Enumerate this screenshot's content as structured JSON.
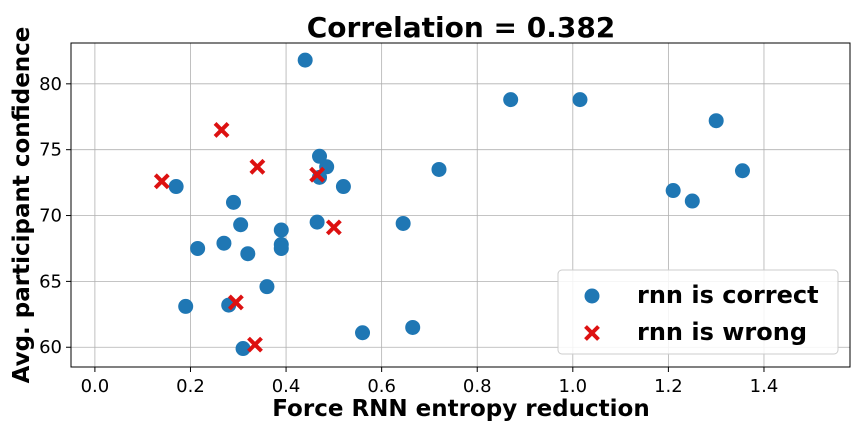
{
  "chart_data": {
    "type": "scatter",
    "title": "Correlation = 0.382",
    "xlabel": "Force RNN entropy reduction",
    "ylabel": "Avg. participant confidence",
    "xlim": [
      -0.05,
      1.58
    ],
    "ylim": [
      58.5,
      83.1
    ],
    "xticks": [
      0.0,
      0.2,
      0.4,
      0.6,
      0.8,
      1.0,
      1.2,
      1.4
    ],
    "xtick_labels": [
      "0.0",
      "0.2",
      "0.4",
      "0.6",
      "0.8",
      "1.0",
      "1.2",
      "1.4"
    ],
    "yticks": [
      60,
      65,
      70,
      75,
      80
    ],
    "ytick_labels": [
      "60",
      "65",
      "70",
      "75",
      "80"
    ],
    "grid": true,
    "legend_position": "lower-right",
    "series": [
      {
        "name": "rnn is correct",
        "marker": "circle",
        "color": "#1f77b4",
        "points": [
          [
            0.44,
            81.8
          ],
          [
            0.87,
            78.8
          ],
          [
            1.015,
            78.8
          ],
          [
            1.3,
            77.2
          ],
          [
            0.47,
            74.5
          ],
          [
            0.485,
            73.7
          ],
          [
            0.47,
            72.9
          ],
          [
            0.72,
            73.5
          ],
          [
            1.355,
            73.4
          ],
          [
            0.17,
            72.2
          ],
          [
            0.52,
            72.2
          ],
          [
            1.21,
            71.9
          ],
          [
            1.25,
            71.1
          ],
          [
            0.29,
            71.0
          ],
          [
            0.465,
            69.5
          ],
          [
            0.645,
            69.4
          ],
          [
            0.305,
            69.3
          ],
          [
            0.39,
            68.9
          ],
          [
            0.27,
            67.9
          ],
          [
            0.39,
            67.8
          ],
          [
            0.215,
            67.5
          ],
          [
            0.39,
            67.5
          ],
          [
            0.32,
            67.1
          ],
          [
            0.36,
            64.6
          ],
          [
            0.19,
            63.1
          ],
          [
            0.28,
            63.2
          ],
          [
            0.665,
            61.5
          ],
          [
            0.56,
            61.1
          ],
          [
            0.31,
            59.9
          ]
        ]
      },
      {
        "name": "rnn is wrong",
        "marker": "x",
        "color": "#dd1111",
        "points": [
          [
            0.265,
            76.5
          ],
          [
            0.34,
            73.7
          ],
          [
            0.14,
            72.6
          ],
          [
            0.465,
            73.1
          ],
          [
            0.5,
            69.1
          ],
          [
            0.295,
            63.4
          ],
          [
            0.335,
            60.2
          ]
        ]
      }
    ]
  }
}
